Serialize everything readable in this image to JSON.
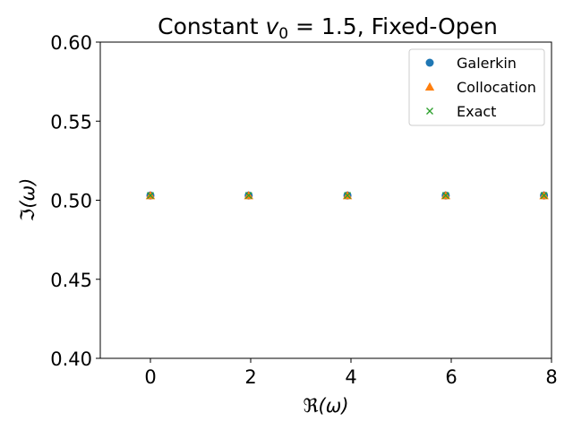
{
  "chart_data": {
    "type": "scatter",
    "title_prefix": "Constant ",
    "title_var": "v",
    "title_sub": "0",
    "title_suffix": " = 1.5, Fixed-Open",
    "xlabel_symbol": "ℜ",
    "xlabel_arg": "(ω)",
    "ylabel_symbol": "ℑ",
    "ylabel_arg": "(ω)",
    "xlim": [
      -1,
      8
    ],
    "ylim": [
      0.4,
      0.6
    ],
    "xticks": [
      0,
      2,
      4,
      6,
      8
    ],
    "xtick_labels": [
      "0",
      "2",
      "4",
      "6",
      "8"
    ],
    "yticks": [
      0.4,
      0.45,
      0.5,
      0.55,
      0.6
    ],
    "ytick_labels": [
      "0.40",
      "0.45",
      "0.50",
      "0.55",
      "0.60"
    ],
    "legend_position": "upper-right",
    "grid": false,
    "series": [
      {
        "name": "Galerkin",
        "marker": "circle",
        "color": "#1f77b4",
        "x": [
          0.0,
          1.96,
          3.93,
          5.89,
          7.85
        ],
        "y": [
          0.503,
          0.503,
          0.503,
          0.503,
          0.503
        ]
      },
      {
        "name": "Collocation",
        "marker": "triangle",
        "color": "#ff7f0e",
        "x": [
          0.0,
          1.96,
          3.93,
          5.89,
          7.85
        ],
        "y": [
          0.503,
          0.503,
          0.503,
          0.503,
          0.503
        ]
      },
      {
        "name": "Exact",
        "marker": "x",
        "color": "#2ca02c",
        "x": [
          0.0,
          1.96,
          3.93,
          5.89,
          7.85
        ],
        "y": [
          0.503,
          0.503,
          0.503,
          0.503,
          0.503
        ]
      }
    ]
  }
}
